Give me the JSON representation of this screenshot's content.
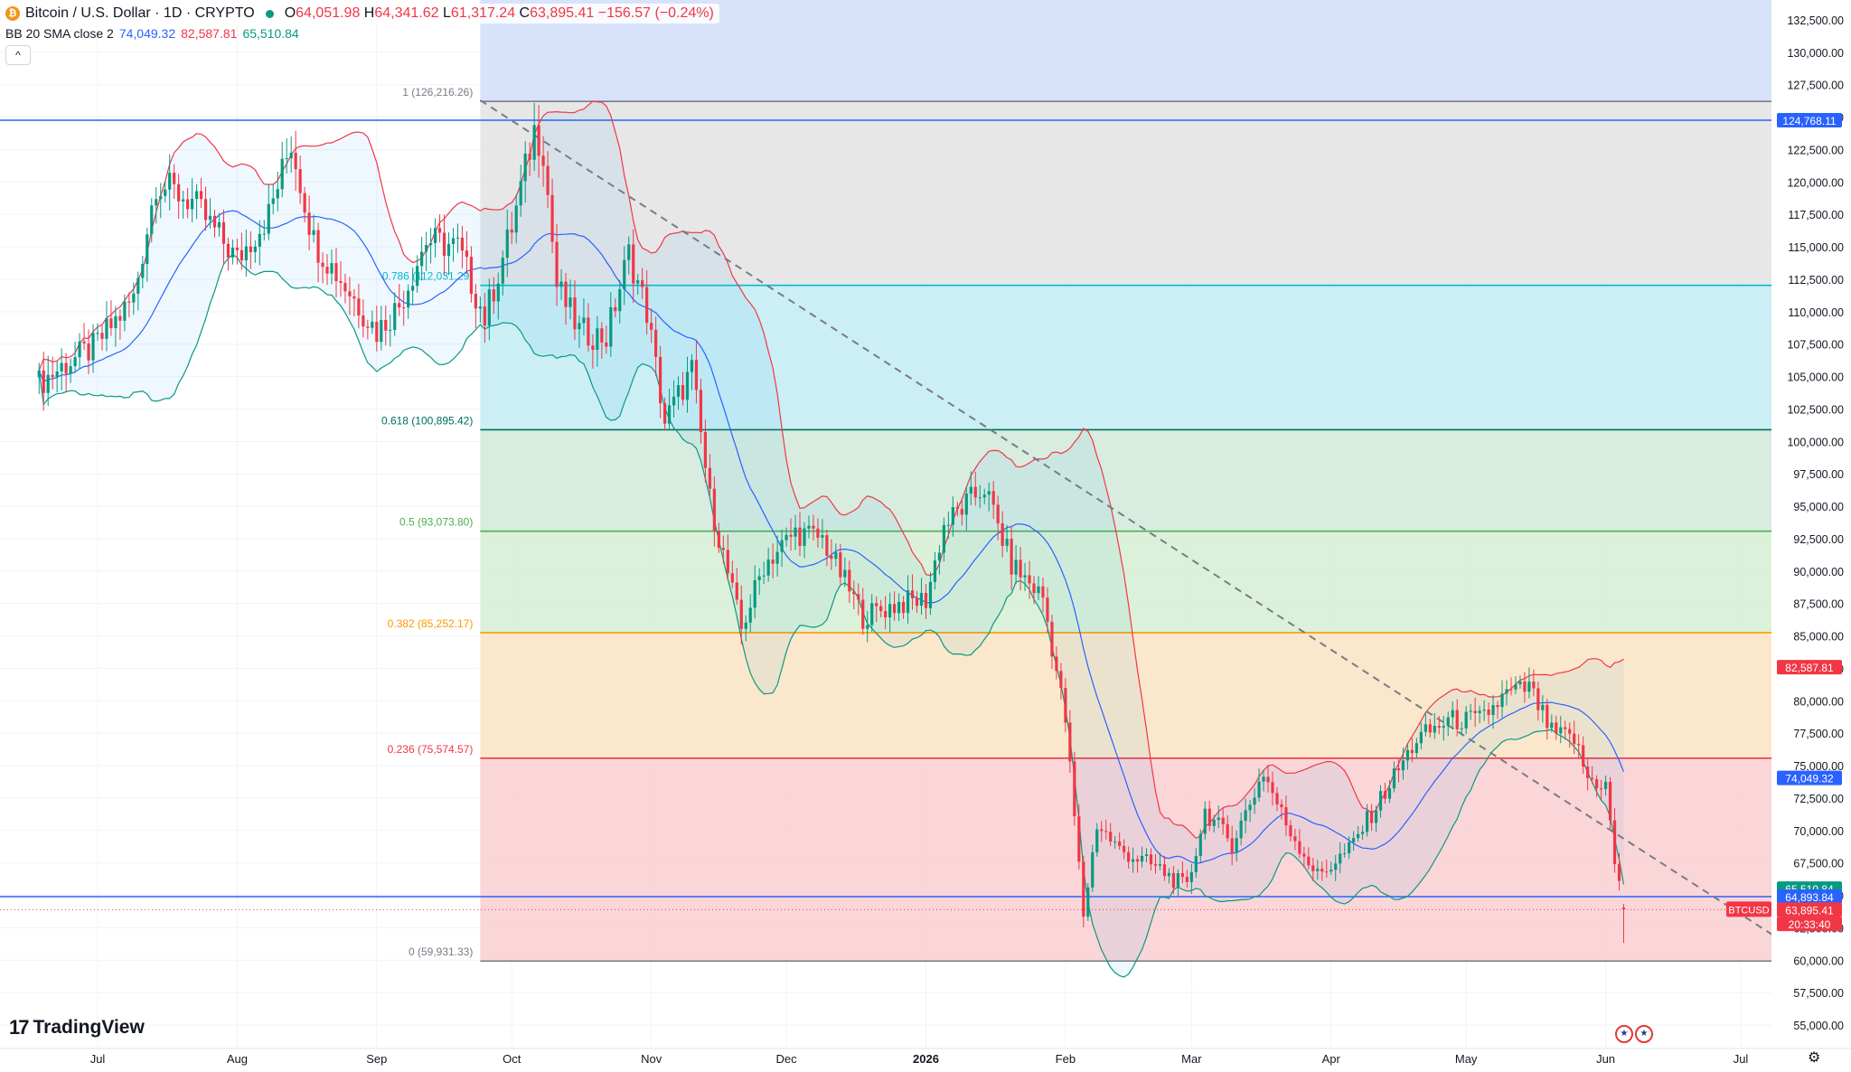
{
  "header": {
    "symbol_icon": "bitcoin-coin-icon",
    "title": "Bitcoin / U.S. Dollar · 1D · CRYPTO",
    "status_dot_color": "#089981",
    "open_label": "O",
    "open_value": "64,051.98",
    "high_label": "H",
    "high_value": "64,341.62",
    "low_label": "L",
    "low_value": "61,317.24",
    "close_label": "C",
    "close_value": "63,895.41",
    "change": "−156.57 (−0.24%)"
  },
  "indicator": {
    "name": "BB 20 SMA close 2",
    "basis": "74,049.32",
    "upper": "82,587.81",
    "lower": "65,510.84",
    "basis_color": "#2962ff",
    "upper_color": "#f23645",
    "lower_color": "#089981"
  },
  "collapse_icon": "chevron-up-icon",
  "brand": "TradingView",
  "settings_icon": "gear-icon",
  "chart_data": {
    "type": "candlestick",
    "symbol": "BTCUSD",
    "ylim": [
      55000,
      132500
    ],
    "y_ticks": [
      55000,
      57500,
      60000,
      62500,
      65000,
      67500,
      70000,
      72500,
      75000,
      77500,
      80000,
      82500,
      85000,
      87500,
      90000,
      92500,
      95000,
      97500,
      100000,
      102500,
      105000,
      107500,
      110000,
      112500,
      115000,
      117500,
      120000,
      122500,
      125000,
      127500,
      130000,
      132500
    ],
    "y_tick_labels": [
      "55,000.00",
      "57,500.00",
      "60,000.00",
      "62,500.00",
      "65,000.00",
      "67,500.00",
      "70,000.00",
      "72,500.00",
      "75,000.00",
      "77,500.00",
      "80,000.00",
      "82,500.00",
      "85,000.00",
      "87,500.00",
      "90,000.00",
      "92,500.00",
      "95,000.00",
      "97,500.00",
      "100,000.00",
      "102,500.00",
      "105,000.00",
      "107,500.00",
      "110,000.00",
      "112,500.00",
      "115,000.00",
      "117,500.00",
      "120,000.00",
      "122,500.00",
      "125,000.00",
      "127,500.00",
      "130,000.00",
      "132,500.00"
    ],
    "x_range": [
      "2025-06-18",
      "2026-07-23"
    ],
    "x_ticks": [
      {
        "date": "2025-07-01",
        "label": "Jul",
        "bold": false
      },
      {
        "date": "2025-08-01",
        "label": "Aug",
        "bold": false
      },
      {
        "date": "2025-09-01",
        "label": "Sep",
        "bold": false
      },
      {
        "date": "2025-10-01",
        "label": "Oct",
        "bold": false
      },
      {
        "date": "2025-11-01",
        "label": "Nov",
        "bold": false
      },
      {
        "date": "2025-12-01",
        "label": "Dec",
        "bold": false
      },
      {
        "date": "2026-01-01",
        "label": "2026",
        "bold": true
      },
      {
        "date": "2026-02-01",
        "label": "Feb",
        "bold": false
      },
      {
        "date": "2026-03-01",
        "label": "Mar",
        "bold": false
      },
      {
        "date": "2026-04-01",
        "label": "Apr",
        "bold": false
      },
      {
        "date": "2026-05-01",
        "label": "May",
        "bold": false
      },
      {
        "date": "2026-06-01",
        "label": "Jun",
        "bold": false
      },
      {
        "date": "2026-07-01",
        "label": "Jul",
        "bold": false
      }
    ],
    "price_path": [
      [
        "2025-06-18",
        104500
      ],
      [
        "2025-06-24",
        106000
      ],
      [
        "2025-06-30",
        107200
      ],
      [
        "2025-07-09",
        111000
      ],
      [
        "2025-07-14",
        120000
      ],
      [
        "2025-07-22",
        118500
      ],
      [
        "2025-08-01",
        114000
      ],
      [
        "2025-08-08",
        117500
      ],
      [
        "2025-08-13",
        123000
      ],
      [
        "2025-08-18",
        115500
      ],
      [
        "2025-08-25",
        112000
      ],
      [
        "2025-09-01",
        108500
      ],
      [
        "2025-09-06",
        110500
      ],
      [
        "2025-09-12",
        115500
      ],
      [
        "2025-09-19",
        115000
      ],
      [
        "2025-09-25",
        109500
      ],
      [
        "2025-10-01",
        116500
      ],
      [
        "2025-10-06",
        124000
      ],
      [
        "2025-10-08",
        122500
      ],
      [
        "2025-10-11",
        112000
      ],
      [
        "2025-10-16",
        108500
      ],
      [
        "2025-10-22",
        108000
      ],
      [
        "2025-10-27",
        114500
      ],
      [
        "2025-10-31",
        110000
      ],
      [
        "2025-11-04",
        101500
      ],
      [
        "2025-11-10",
        105500
      ],
      [
        "2025-11-14",
        95500
      ],
      [
        "2025-11-21",
        85500
      ],
      [
        "2025-11-26",
        90500
      ],
      [
        "2025-12-03",
        93000
      ],
      [
        "2025-12-09",
        92500
      ],
      [
        "2025-12-18",
        86500
      ],
      [
        "2025-12-26",
        87500
      ],
      [
        "2026-01-01",
        87800
      ],
      [
        "2026-01-05",
        93500
      ],
      [
        "2026-01-14",
        96500
      ],
      [
        "2026-01-20",
        90500
      ],
      [
        "2026-01-27",
        88000
      ],
      [
        "2026-02-01",
        78500
      ],
      [
        "2026-02-05",
        63500
      ],
      [
        "2026-02-08",
        70500
      ],
      [
        "2026-02-13",
        68500
      ],
      [
        "2026-02-22",
        67000
      ],
      [
        "2026-02-28",
        65500
      ],
      [
        "2026-03-04",
        71500
      ],
      [
        "2026-03-10",
        69000
      ],
      [
        "2026-03-17",
        74500
      ],
      [
        "2026-03-22",
        70500
      ],
      [
        "2026-03-29",
        66500
      ],
      [
        "2026-04-05",
        68500
      ],
      [
        "2026-04-13",
        73000
      ],
      [
        "2026-04-20",
        77000
      ],
      [
        "2026-04-27",
        78500
      ],
      [
        "2026-05-04",
        78500
      ],
      [
        "2026-05-10",
        80500
      ],
      [
        "2026-05-15",
        81000
      ],
      [
        "2026-05-20",
        77500
      ],
      [
        "2026-05-25",
        77000
      ],
      [
        "2026-05-28",
        74000
      ],
      [
        "2026-06-01",
        73500
      ],
      [
        "2026-06-03",
        67500
      ],
      [
        "2026-06-05",
        63895.41
      ]
    ],
    "fibonacci": [
      {
        "label": "1 (126,216.26)",
        "price": 126216.26,
        "color": "#787b86",
        "fill": "#e4e4e4"
      },
      {
        "label": "0.786 (112,031.29)",
        "price": 112031.29,
        "color": "#00bcd4",
        "fill": "#c5edf4"
      },
      {
        "label": "0.618 (100,895.42)",
        "price": 100895.42,
        "color": "#006f5f",
        "fill": "#d4eadd"
      },
      {
        "label": "0.5 (93,073.80)",
        "price": 93073.8,
        "color": "#4caf50",
        "fill": "#d8efd5"
      },
      {
        "label": "0.382 (85,252.17)",
        "price": 85252.17,
        "color": "#ff9800",
        "fill": "#fbe5c6"
      },
      {
        "label": "0.236 (75,574.57)",
        "price": 75574.57,
        "color": "#f23645",
        "fill": "#f9d1d4"
      },
      {
        "label": "0 (59,931.33)",
        "price": 59931.33,
        "color": "#787b86",
        "fill": null
      }
    ],
    "fib_start_date": "2025-09-24",
    "fib_top_fill": "#d6e0fb",
    "horizontal_lines": [
      124768.11,
      64893.84
    ],
    "trendline": {
      "from": [
        "2025-09-24",
        126300
      ],
      "to": [
        "2026-07-15",
        60400
      ]
    },
    "price_labels": [
      {
        "text": "124,768.11",
        "price": 124768.11,
        "bg": "#2962ff"
      },
      {
        "text": "82,587.81",
        "price": 82587.81,
        "bg": "#f23645"
      },
      {
        "text": "74,049.32",
        "price": 74049.32,
        "bg": "#2962ff"
      },
      {
        "text": "65,510.84",
        "price": 65510.84,
        "bg": "#089981"
      },
      {
        "text": "64,893.84",
        "price": 64893.84,
        "bg": "#2962ff"
      },
      {
        "text": "63,895.41",
        "price": 63895.41,
        "bg": "#f23645"
      },
      {
        "text": "20:33:40",
        "price": 62795,
        "bg": "#f23645"
      }
    ],
    "symbol_tag": "BTCUSD",
    "up_color": "#089981",
    "down_color": "#f23645"
  }
}
